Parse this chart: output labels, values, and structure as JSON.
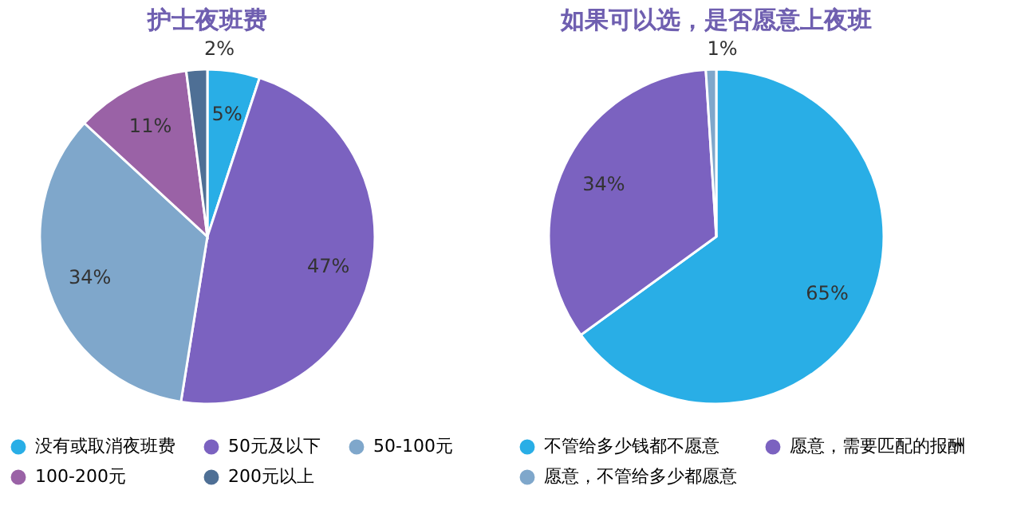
{
  "chart_data": [
    {
      "type": "pie",
      "title": "护士夜班费",
      "categories": [
        "没有或取消夜班费",
        "50元及以下",
        "50-100元",
        "100-200元",
        "200元以上"
      ],
      "values": [
        5,
        47,
        34,
        11,
        2
      ],
      "value_labels": [
        "5%",
        "47%",
        "34%",
        "11%",
        "2%"
      ],
      "colors": [
        "#29aee6",
        "#7b62c0",
        "#7fa7cb",
        "#9a62a6",
        "#4e6f95"
      ],
      "legend": "bottom"
    },
    {
      "type": "pie",
      "title": "如果可以选，是否愿意上夜班",
      "categories": [
        "不管给多少钱都不愿意",
        "愿意，需要匹配的报酬",
        "愿意，不管给多少都愿意"
      ],
      "values": [
        65,
        34,
        1
      ],
      "value_labels": [
        "65%",
        "34%",
        "1%"
      ],
      "colors": [
        "#29aee6",
        "#7b62c0",
        "#7fa7cb"
      ],
      "legend": "bottom"
    }
  ]
}
